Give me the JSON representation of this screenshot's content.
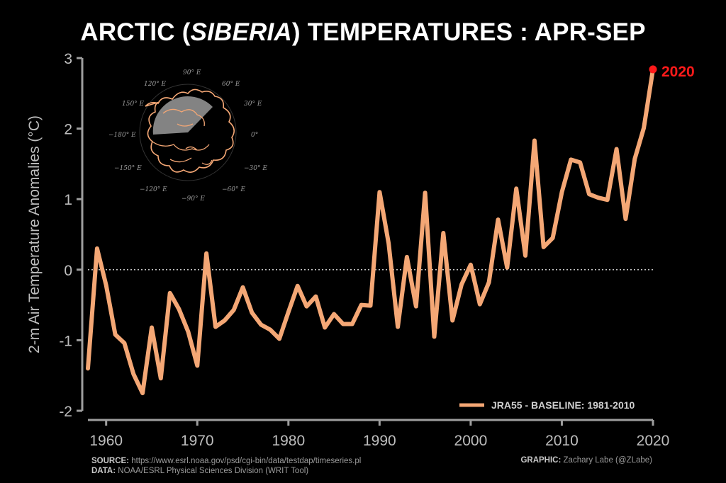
{
  "title": {
    "pre": "ARCTIC (",
    "italic": "SIBERIA",
    "post": ") TEMPERATURES : APR-SEP"
  },
  "footer": {
    "source_label": "SOURCE:",
    "source_value": "https://www.esrl.noaa.gov/psd/cgi-bin/data/testdap/timeseries.pl",
    "data_label": "DATA:",
    "data_value": "NOAA/ESRL Physical Sciences Division (WRIT Tool)",
    "graphic_label": "GRAPHIC:",
    "graphic_value": "Zachary Labe (@ZLabe)"
  },
  "map_inset": {
    "labels": [
      "120° E",
      "90° E",
      "60° E",
      "150° E",
      "30° E",
      "−180° E",
      "0°",
      "−150° E",
      "−30° E",
      "−120° E",
      "−90° E",
      "−60° E"
    ]
  },
  "colors": {
    "line": "#f4a775",
    "highlight": "#ff1a1a",
    "axis": "#9e9e9e",
    "zero": "#dddddd"
  },
  "chart_data": {
    "type": "line",
    "title": "ARCTIC (SIBERIA) TEMPERATURES : APR-SEP",
    "xlabel": "",
    "ylabel": "2-m Air Temperature Anomalies (°C)",
    "xlim": [
      1958,
      2020
    ],
    "ylim": [
      -2,
      3
    ],
    "xticks": [
      1960,
      1970,
      1980,
      1990,
      2000,
      2010,
      2020
    ],
    "yticks": [
      -2,
      -1,
      0,
      1,
      2,
      3
    ],
    "zero_line": true,
    "legend": "bottom-right",
    "series": [
      {
        "name": "JRA55 - BASELINE: 1981-2010",
        "x": [
          1958,
          1959,
          1960,
          1961,
          1962,
          1963,
          1964,
          1965,
          1966,
          1967,
          1968,
          1969,
          1970,
          1971,
          1972,
          1973,
          1974,
          1975,
          1976,
          1977,
          1978,
          1979,
          1980,
          1981,
          1982,
          1983,
          1984,
          1985,
          1986,
          1987,
          1988,
          1989,
          1990,
          1991,
          1992,
          1993,
          1994,
          1995,
          1996,
          1997,
          1998,
          1999,
          2000,
          2001,
          2002,
          2003,
          2004,
          2005,
          2006,
          2007,
          2008,
          2009,
          2010,
          2011,
          2012,
          2013,
          2014,
          2015,
          2016,
          2017,
          2018,
          2019,
          2020
        ],
        "values": [
          -1.4,
          0.3,
          -0.22,
          -0.92,
          -1.04,
          -1.48,
          -1.75,
          -0.82,
          -1.54,
          -0.33,
          -0.56,
          -0.88,
          -1.36,
          0.23,
          -0.81,
          -0.72,
          -0.57,
          -0.25,
          -0.61,
          -0.78,
          -0.85,
          -0.98,
          -0.6,
          -0.23,
          -0.52,
          -0.38,
          -0.82,
          -0.63,
          -0.77,
          -0.77,
          -0.5,
          -0.51,
          1.1,
          0.37,
          -0.81,
          0.18,
          -0.52,
          1.09,
          -0.95,
          0.52,
          -0.72,
          -0.21,
          0.07,
          -0.49,
          -0.18,
          0.71,
          0.03,
          1.15,
          0.2,
          1.83,
          0.32,
          0.45,
          1.1,
          1.56,
          1.52,
          1.07,
          1.02,
          0.99,
          1.71,
          0.72,
          1.57,
          2.01,
          2.84
        ]
      }
    ],
    "annotation": {
      "x": 2020,
      "y": 2.84,
      "text": "2020"
    }
  }
}
